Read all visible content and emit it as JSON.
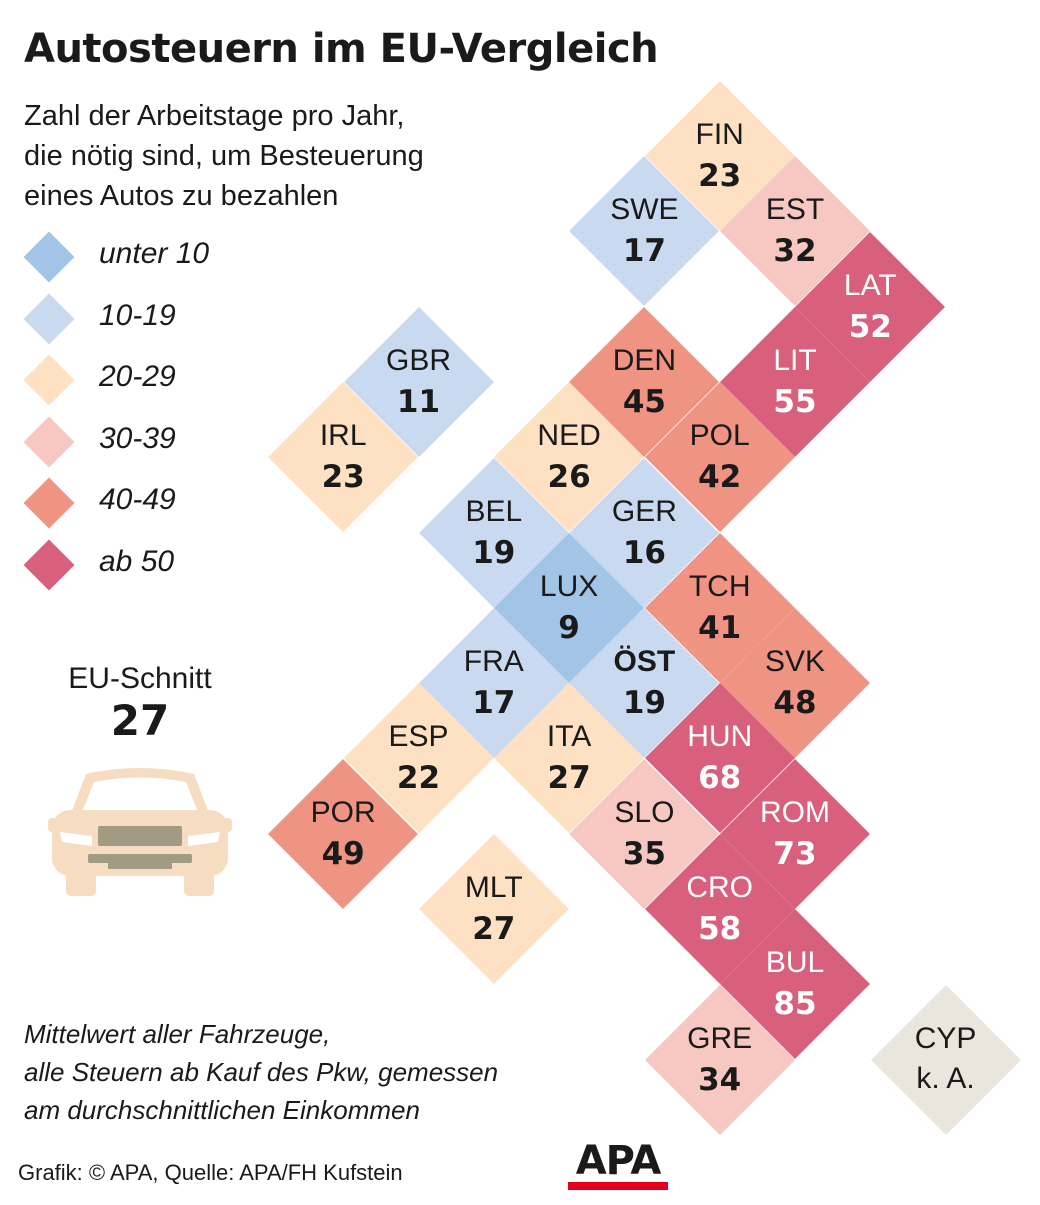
{
  "header": {
    "title": "Autosteuern im EU-Vergleich",
    "subtitle_lines": [
      "Zahl der Arbeitstage pro Jahr,",
      "die nötig sind, um Besteuerung",
      "eines Autos zu bezahlen"
    ]
  },
  "colors": {
    "unter10": "#a2c4e6",
    "b10_19": "#c9daf0",
    "b20_29": "#fde1c2",
    "b30_39": "#f7c8c2",
    "b40_49": "#ef9383",
    "ab50": "#d9607d",
    "na": "#ebe6dd"
  },
  "legend": [
    {
      "label": "unter 10",
      "color_key": "unter10"
    },
    {
      "label": "10-19",
      "color_key": "b10_19"
    },
    {
      "label": "20-29",
      "color_key": "b20_29"
    },
    {
      "label": "30-39",
      "color_key": "b30_39"
    },
    {
      "label": "40-49",
      "color_key": "b40_49"
    },
    {
      "label": "ab 50",
      "color_key": "ab50"
    }
  ],
  "eu_average": {
    "label": "EU-Schnitt",
    "value": "27"
  },
  "countries": [
    {
      "code": "FIN",
      "value": "23",
      "col": 9,
      "row": 0,
      "color_key": "b20_29"
    },
    {
      "code": "SWE",
      "value": "17",
      "col": 8,
      "row": 1,
      "color_key": "b10_19"
    },
    {
      "code": "EST",
      "value": "32",
      "col": 10,
      "row": 1,
      "color_key": "b30_39"
    },
    {
      "code": "LAT",
      "value": "52",
      "col": 11,
      "row": 2,
      "color_key": "ab50"
    },
    {
      "code": "GBR",
      "value": "11",
      "col": 5,
      "row": 3,
      "color_key": "b10_19"
    },
    {
      "code": "DEN",
      "value": "45",
      "col": 8,
      "row": 3,
      "color_key": "b40_49"
    },
    {
      "code": "LIT",
      "value": "55",
      "col": 10,
      "row": 3,
      "color_key": "ab50"
    },
    {
      "code": "IRL",
      "value": "23",
      "col": 4,
      "row": 4,
      "color_key": "b20_29"
    },
    {
      "code": "NED",
      "value": "26",
      "col": 7,
      "row": 4,
      "color_key": "b20_29"
    },
    {
      "code": "POL",
      "value": "42",
      "col": 9,
      "row": 4,
      "color_key": "b40_49"
    },
    {
      "code": "BEL",
      "value": "19",
      "col": 6,
      "row": 5,
      "color_key": "b10_19"
    },
    {
      "code": "GER",
      "value": "16",
      "col": 8,
      "row": 5,
      "color_key": "b10_19"
    },
    {
      "code": "LUX",
      "value": "9",
      "col": 7,
      "row": 6,
      "color_key": "unter10"
    },
    {
      "code": "TCH",
      "value": "41",
      "col": 9,
      "row": 6,
      "color_key": "b40_49"
    },
    {
      "code": "FRA",
      "value": "17",
      "col": 6,
      "row": 7,
      "color_key": "b10_19"
    },
    {
      "code": "ÖST",
      "value": "19",
      "col": 8,
      "row": 7,
      "color_key": "b10_19",
      "bold": true
    },
    {
      "code": "SVK",
      "value": "48",
      "col": 10,
      "row": 7,
      "color_key": "b40_49"
    },
    {
      "code": "ESP",
      "value": "22",
      "col": 5,
      "row": 8,
      "color_key": "b20_29"
    },
    {
      "code": "ITA",
      "value": "27",
      "col": 7,
      "row": 8,
      "color_key": "b20_29"
    },
    {
      "code": "HUN",
      "value": "68",
      "col": 9,
      "row": 8,
      "color_key": "ab50"
    },
    {
      "code": "POR",
      "value": "49",
      "col": 4,
      "row": 9,
      "color_key": "b40_49"
    },
    {
      "code": "SLO",
      "value": "35",
      "col": 8,
      "row": 9,
      "color_key": "b30_39"
    },
    {
      "code": "ROM",
      "value": "73",
      "col": 10,
      "row": 9,
      "color_key": "ab50"
    },
    {
      "code": "MLT",
      "value": "27",
      "col": 6,
      "row": 10,
      "color_key": "b20_29"
    },
    {
      "code": "CRO",
      "value": "58",
      "col": 9,
      "row": 10,
      "color_key": "ab50"
    },
    {
      "code": "BUL",
      "value": "85",
      "col": 10,
      "row": 11,
      "color_key": "ab50"
    },
    {
      "code": "GRE",
      "value": "34",
      "col": 9,
      "row": 12,
      "color_key": "b30_39"
    },
    {
      "code": "CYP",
      "value": "k. A.",
      "col": 12,
      "row": 12,
      "color_key": "na"
    }
  ],
  "note_lines": [
    "Mittelwert aller Fahrzeuge,",
    "alle Steuern ab Kauf des Pkw, gemessen",
    "am durchschnittlichen Einkommen"
  ],
  "source": "Grafik: © APA, Quelle: APA/FH Kufstein",
  "logo_text": "APA"
}
